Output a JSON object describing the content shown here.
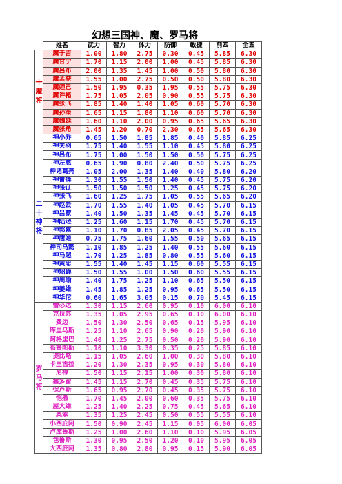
{
  "title": "幻想三国神、魔、罗马将",
  "table": {
    "header": [
      "姓名",
      "武力",
      "智力",
      "体力",
      "防御",
      "敏捷",
      "前四",
      "全五"
    ],
    "groups": [
      {
        "label": "十魔将",
        "rows": [
          [
            "魔于吉",
            "1.00",
            "1.80",
            "2.75",
            "0.30",
            "0.45",
            "5.85",
            "6.30"
          ],
          [
            "魔甘宁",
            "1.70",
            "1.15",
            "2.00",
            "1.00",
            "0.45",
            "5.85",
            "6.30"
          ],
          [
            "魔吕布",
            "2.00",
            "1.35",
            "1.45",
            "1.00",
            "0.50",
            "5.80",
            "6.30"
          ],
          [
            "魔孟获",
            "1.55",
            "1.00",
            "2.75",
            "0.50",
            "0.50",
            "5.80",
            "6.30"
          ],
          [
            "魔妲己",
            "1.50",
            "1.95",
            "0.35",
            "1.95",
            "0.55",
            "5.75",
            "6.30"
          ],
          [
            "魔许褚",
            "1.75",
            "1.05",
            "2.05",
            "0.90",
            "0.55",
            "5.75",
            "6.30"
          ],
          [
            "魔张飞",
            "1.85",
            "1.40",
            "1.40",
            "1.05",
            "0.60",
            "5.70",
            "6.30"
          ],
          [
            "魔孙策",
            "1.65",
            "1.15",
            "1.80",
            "1.10",
            "0.60",
            "5.70",
            "6.30"
          ],
          [
            "魔魏延",
            "1.60",
            "1.10",
            "2.00",
            "0.95",
            "0.65",
            "5.65",
            "6.30"
          ],
          [
            "魔张角",
            "1.45",
            "1.20",
            "0.70",
            "2.30",
            "0.65",
            "5.65",
            "6.30"
          ]
        ]
      },
      {
        "label": "二十神将",
        "rows": [
          [
            "神小乔",
            "0.65",
            "1.50",
            "1.85",
            "1.85",
            "0.40",
            "5.85",
            "6.25"
          ],
          [
            "神关羽",
            "1.75",
            "1.40",
            "1.55",
            "1.10",
            "0.45",
            "5.80",
            "6.25"
          ],
          [
            "神吕布",
            "1.75",
            "1.00",
            "1.50",
            "1.50",
            "0.50",
            "5.75",
            "6.25"
          ],
          [
            "神左慈",
            "0.65",
            "1.90",
            "0.80",
            "2.40",
            "0.50",
            "5.75",
            "6.25"
          ],
          [
            "神诸葛亮",
            "1.05",
            "2.00",
            "1.35",
            "1.40",
            "0.40",
            "5.80",
            "6.20"
          ],
          [
            "神曹操",
            "1.30",
            "1.55",
            "1.50",
            "1.40",
            "0.45",
            "5.75",
            "6.20"
          ],
          [
            "神张辽",
            "1.50",
            "1.50",
            "1.50",
            "1.25",
            "0.45",
            "5.75",
            "6.20"
          ],
          [
            "神张飞",
            "1.60",
            "1.25",
            "1.75",
            "1.05",
            "0.55",
            "5.65",
            "6.20"
          ],
          [
            "神赵云",
            "1.70",
            "1.55",
            "1.40",
            "1.05",
            "0.45",
            "5.70",
            "6.15"
          ],
          [
            "神吕蒙",
            "1.40",
            "1.50",
            "1.35",
            "1.45",
            "0.45",
            "5.70",
            "6.15"
          ],
          [
            "神陆逊",
            "1.25",
            "1.60",
            "1.15",
            "1.70",
            "0.45",
            "5.70",
            "6.15"
          ],
          [
            "神郭嘉",
            "1.10",
            "1.70",
            "0.85",
            "2.05",
            "0.45",
            "5.70",
            "6.15"
          ],
          [
            "神唐姬",
            "0.75",
            "1.75",
            "1.60",
            "1.55",
            "0.50",
            "5.65",
            "6.15"
          ],
          [
            "神司马懿",
            "1.10",
            "1.85",
            "1.25",
            "1.40",
            "0.55",
            "5.60",
            "6.15"
          ],
          [
            "神马超",
            "1.70",
            "1.25",
            "1.85",
            "0.80",
            "0.55",
            "5.60",
            "6.15"
          ],
          [
            "神黄忠",
            "1.55",
            "1.40",
            "1.45",
            "1.15",
            "0.60",
            "5.55",
            "6.15"
          ],
          [
            "神貂蝉",
            "1.50",
            "1.55",
            "1.00",
            "1.50",
            "0.60",
            "5.55",
            "6.15"
          ],
          [
            "神周瑜",
            "1.40",
            "1.75",
            "1.25",
            "1.10",
            "0.65",
            "5.50",
            "6.15"
          ],
          [
            "神姜维",
            "1.45",
            "1.85",
            "1.25",
            "0.95",
            "0.65",
            "5.50",
            "6.15"
          ],
          [
            "神华佗",
            "0.60",
            "1.65",
            "3.05",
            "0.15",
            "0.70",
            "5.45",
            "6.15"
          ]
        ]
      },
      {
        "label": "罗马将",
        "rows": [
          [
            "雷必达",
            "1.30",
            "1.15",
            "2.60",
            "0.95",
            "0.10",
            "6.00",
            "6.10"
          ],
          [
            "克拉苏",
            "1.35",
            "1.05",
            "2.95",
            "0.65",
            "0.10",
            "6.00",
            "6.10"
          ],
          [
            "费边",
            "1.50",
            "1.30",
            "2.50",
            "0.65",
            "0.15",
            "5.95",
            "6.10"
          ],
          [
            "库里马斯",
            "1.25",
            "1.10",
            "2.65",
            "0.90",
            "0.20",
            "5.90",
            "6.10"
          ],
          [
            "阿格里巴",
            "1.40",
            "1.25",
            "2.75",
            "0.50",
            "0.20",
            "5.90",
            "6.10"
          ],
          [
            "布鲁图斯",
            "1.10",
            "1.10",
            "3.30",
            "0.35",
            "0.25",
            "5.85",
            "6.10"
          ],
          [
            "提比略",
            "1.15",
            "1.05",
            "2.60",
            "1.00",
            "0.30",
            "5.80",
            "6.10"
          ],
          [
            "卡里古拉",
            "1.20",
            "1.30",
            "2.35",
            "0.95",
            "0.30",
            "5.80",
            "6.10"
          ],
          [
            "尼禄",
            "1.50",
            "1.15",
            "2.15",
            "1.00",
            "0.30",
            "5.80",
            "6.10"
          ],
          [
            "塞多留",
            "1.45",
            "1.15",
            "2.70",
            "0.45",
            "0.35",
            "5.75",
            "6.10"
          ],
          [
            "保卢斯",
            "1.65",
            "0.95",
            "2.70",
            "0.45",
            "0.35",
            "5.75",
            "6.10"
          ],
          [
            "恺撒",
            "1.70",
            "1.45",
            "2.00",
            "0.60",
            "0.35",
            "5.75",
            "6.10"
          ],
          [
            "屋大维",
            "1.25",
            "1.40",
            "2.25",
            "0.75",
            "0.45",
            "5.65",
            "6.10"
          ],
          [
            "奥索",
            "1.35",
            "1.25",
            "2.45",
            "0.50",
            "0.55",
            "5.55",
            "6.10"
          ],
          [
            "小西庇阿",
            "1.50",
            "0.90",
            "2.45",
            "1.15",
            "0.05",
            "6.00",
            "6.05"
          ],
          [
            "卢库鲁斯",
            "1.25",
            "1.00",
            "2.60",
            "1.10",
            "0.10",
            "5.95",
            "6.05"
          ],
          [
            "包鲁斯",
            "1.30",
            "0.95",
            "2.50",
            "1.20",
            "0.10",
            "5.95",
            "6.05"
          ],
          [
            "大西庇阿",
            "1.35",
            "0.80",
            "2.80",
            "0.95",
            "0.15",
            "5.90",
            "6.05"
          ]
        ]
      }
    ]
  }
}
